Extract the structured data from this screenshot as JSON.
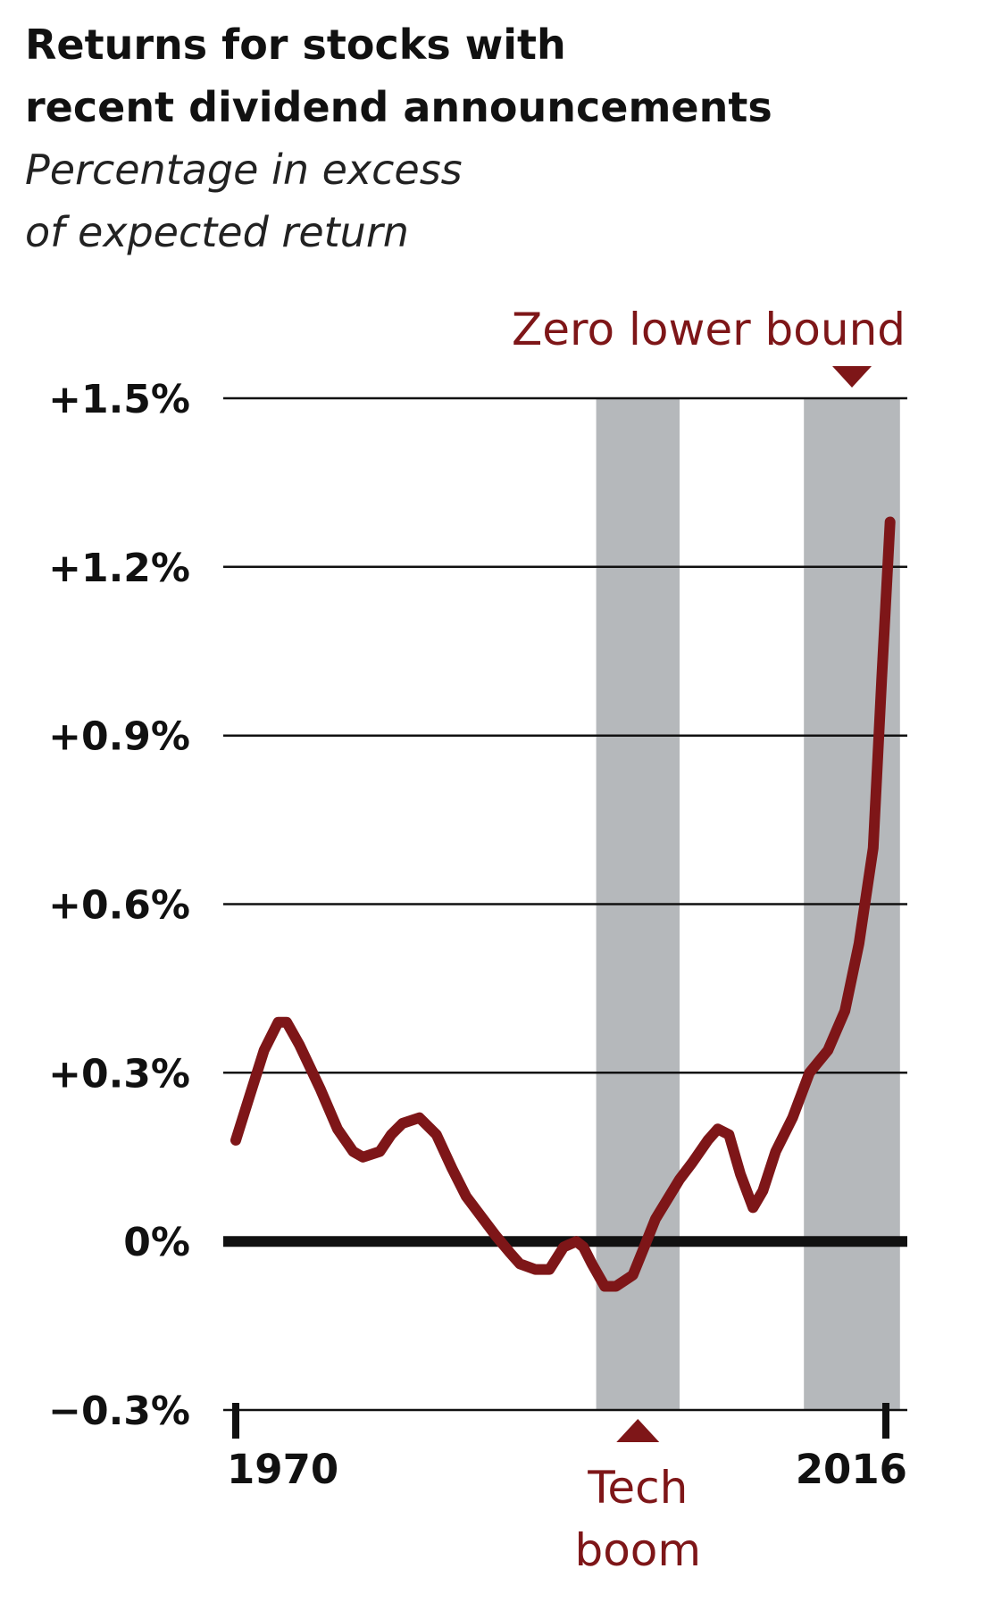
{
  "chart_data": {
    "type": "line",
    "title_lines": [
      "Returns for stocks with",
      "recent dividend announcements"
    ],
    "subtitle_lines": [
      "Percentage in excess",
      "of expected return"
    ],
    "xlim": [
      1970,
      2016
    ],
    "ylim": [
      -0.3,
      1.5
    ],
    "x_ticks": [
      {
        "value": 1970,
        "label": "1970"
      },
      {
        "value": 2016,
        "label": "2016"
      }
    ],
    "y_ticks": [
      {
        "value": 1.5,
        "label": "+1.5%"
      },
      {
        "value": 1.2,
        "label": "+1.2%"
      },
      {
        "value": 0.9,
        "label": "+0.9%"
      },
      {
        "value": 0.6,
        "label": "+0.6%"
      },
      {
        "value": 0.3,
        "label": "+0.3%"
      },
      {
        "value": 0,
        "label": "0%"
      },
      {
        "value": -0.3,
        "label": "−0.3%"
      }
    ],
    "grid": true,
    "shaded_periods": [
      {
        "name": "tech-boom",
        "label_lines": [
          "Tech",
          "boom"
        ],
        "start": 1995.5,
        "end": 2001.4,
        "label_position": "bottom"
      },
      {
        "name": "zero-lower-bound",
        "label_lines": [
          "Zero lower bound"
        ],
        "start": 2010.2,
        "end": 2017.0,
        "label_position": "top"
      }
    ],
    "series": [
      {
        "x": [
          1970,
          1971,
          1972,
          1973,
          1973.6,
          1974.5,
          1976,
          1977.2,
          1978.3,
          1979,
          1980.2,
          1981,
          1981.8,
          1983,
          1984.2,
          1985.3,
          1986.3,
          1987.2,
          1988.4,
          1989.4,
          1990.1,
          1991.2,
          1992.2,
          1993.2,
          1994.1,
          1994.6,
          1995.2,
          1996.1,
          1996.9,
          1998.1,
          1998.9,
          1999.7,
          2001.4,
          2002.3,
          2003.4,
          2004.1,
          2004.9,
          2005.7,
          2006.6,
          2007.3,
          2008.2,
          2009.4,
          2010.6,
          2011.9,
          2013.1,
          2014.1,
          2015.1,
          2015.7,
          2016.3
        ],
        "y": [
          0.18,
          0.26,
          0.34,
          0.39,
          0.39,
          0.35,
          0.27,
          0.2,
          0.16,
          0.15,
          0.16,
          0.19,
          0.21,
          0.22,
          0.19,
          0.13,
          0.08,
          0.05,
          0.01,
          -0.02,
          -0.04,
          -0.05,
          -0.05,
          -0.01,
          0.0,
          -0.01,
          -0.04,
          -0.08,
          -0.08,
          -0.06,
          -0.01,
          0.04,
          0.11,
          0.14,
          0.18,
          0.2,
          0.19,
          0.12,
          0.06,
          0.09,
          0.16,
          0.22,
          0.3,
          0.34,
          0.41,
          0.53,
          0.7,
          1.0,
          1.28
        ],
        "color": "#7e1618"
      }
    ],
    "colors": {
      "line": "#7e1618",
      "annotation": "#7e1618",
      "shade": "#b5b8bb",
      "grid": "#111111"
    }
  }
}
